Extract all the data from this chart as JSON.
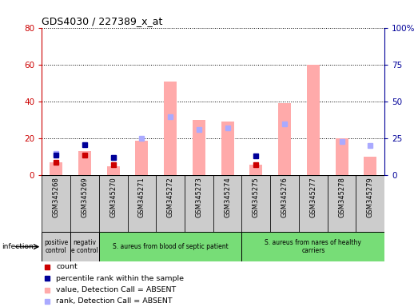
{
  "title": "GDS4030 / 227389_x_at",
  "samples": [
    "GSM345268",
    "GSM345269",
    "GSM345270",
    "GSM345271",
    "GSM345272",
    "GSM345273",
    "GSM345274",
    "GSM345275",
    "GSM345276",
    "GSM345277",
    "GSM345278",
    "GSM345279"
  ],
  "count": [
    7,
    11,
    6,
    null,
    null,
    null,
    null,
    6,
    null,
    null,
    null,
    null
  ],
  "percentile_rank": [
    14,
    21,
    12,
    null,
    null,
    null,
    null,
    13,
    null,
    null,
    null,
    null
  ],
  "value_absent": [
    7,
    13,
    5,
    19,
    51,
    30,
    29,
    6,
    39,
    60,
    20,
    10
  ],
  "rank_absent": [
    15,
    null,
    12,
    25,
    40,
    31,
    32,
    null,
    35,
    null,
    23,
    20
  ],
  "ylim_left": [
    0,
    80
  ],
  "ylim_right": [
    0,
    100
  ],
  "yticks_left": [
    0,
    20,
    40,
    60,
    80
  ],
  "yticks_right": [
    0,
    25,
    50,
    75,
    100
  ],
  "ytick_labels_right": [
    "0",
    "25",
    "50",
    "75",
    "100%"
  ],
  "group_info": [
    {
      "label": "positive\ncontrol",
      "start": 0,
      "end": 1,
      "color": "#cccccc"
    },
    {
      "label": "negativ\ne control",
      "start": 1,
      "end": 2,
      "color": "#cccccc"
    },
    {
      "label": "S. aureus from blood of septic patient",
      "start": 2,
      "end": 7,
      "color": "#77dd77"
    },
    {
      "label": "S. aureus from nares of healthy\ncarriers",
      "start": 7,
      "end": 12,
      "color": "#77dd77"
    }
  ],
  "count_color": "#cc0000",
  "percentile_color": "#000099",
  "value_absent_color": "#ffaaaa",
  "rank_absent_color": "#aaaaff",
  "bg_color": "#ffffff",
  "sample_bg_color": "#cccccc",
  "legend_items": [
    {
      "color": "#cc0000",
      "label": "count"
    },
    {
      "color": "#000099",
      "label": "percentile rank within the sample"
    },
    {
      "color": "#ffaaaa",
      "label": "value, Detection Call = ABSENT"
    },
    {
      "color": "#aaaaff",
      "label": "rank, Detection Call = ABSENT"
    }
  ]
}
